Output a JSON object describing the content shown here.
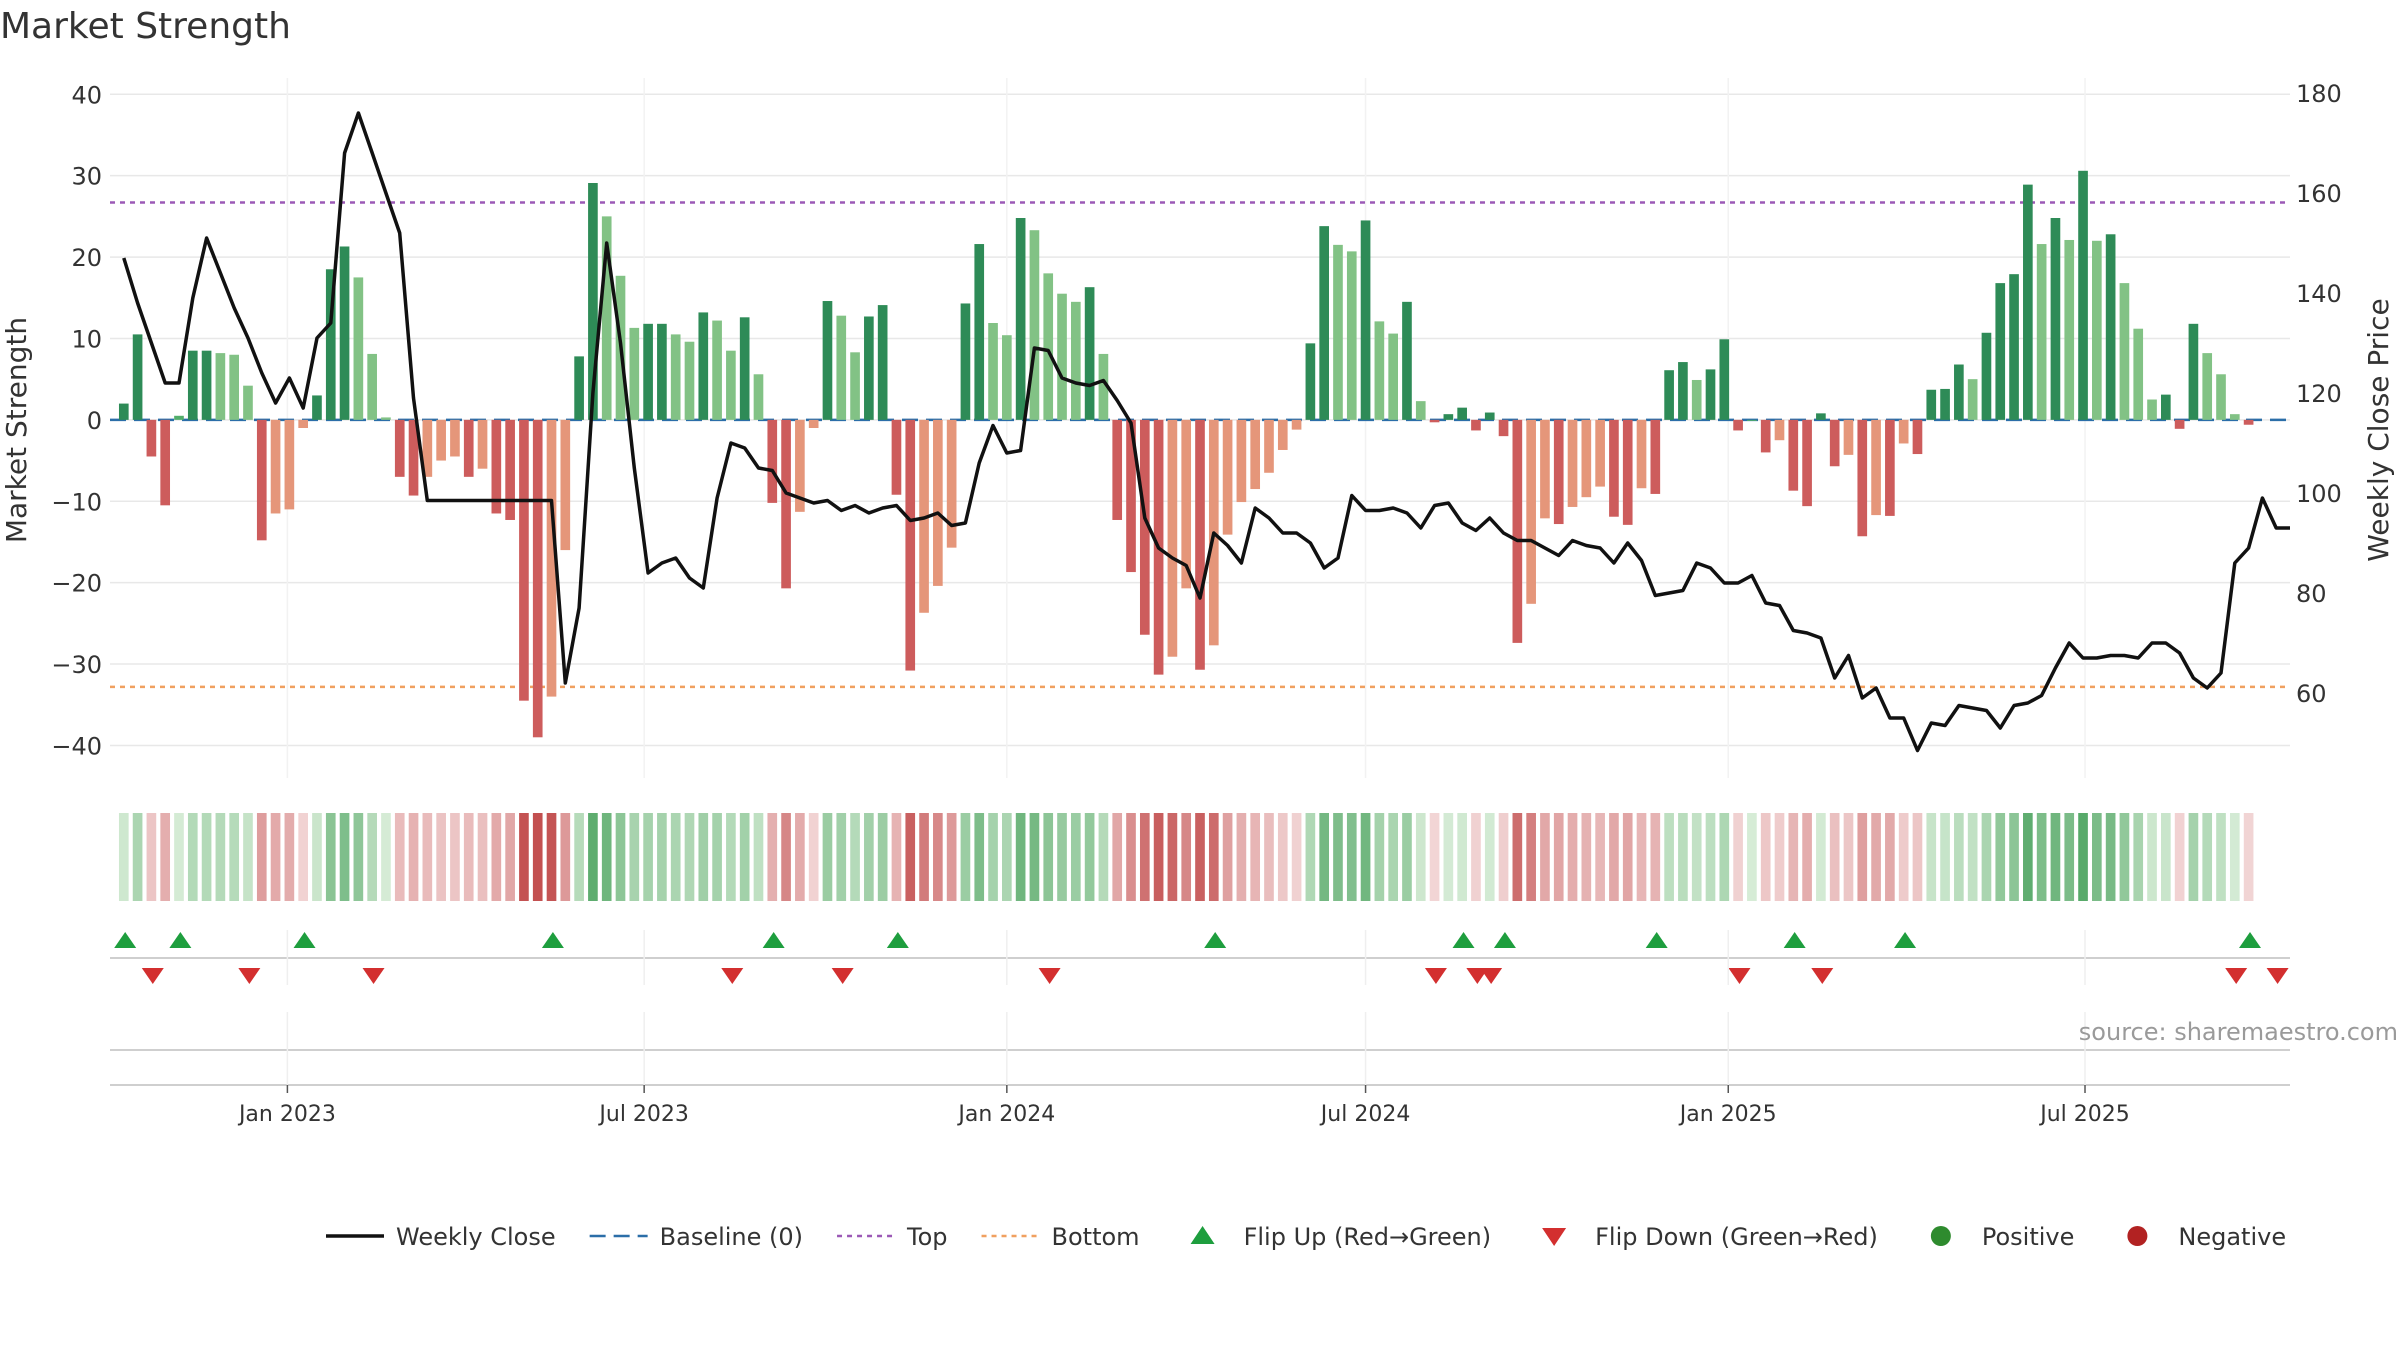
{
  "chart_data": {
    "type": "bar+line",
    "title": "Market Strength",
    "ylabel_left": "Market Strength",
    "ylabel_right": "Weekly Close Price",
    "ylim_left": [
      -44,
      42
    ],
    "ylim_right": [
      43,
      183
    ],
    "yticks_left": [
      40,
      30,
      20,
      10,
      0,
      -10,
      -20,
      -30,
      -40
    ],
    "ytick_labels_left": [
      "40",
      "30",
      "20",
      "10",
      "0",
      "−10",
      "−20",
      "−30",
      "−40"
    ],
    "yticks_right": [
      180,
      160,
      140,
      120,
      100,
      80,
      60
    ],
    "ytick_labels_right": [
      "180",
      "160",
      "140",
      "120",
      "100",
      "80",
      "60"
    ],
    "x_start": "2022-10-03",
    "x_end": "2025-10-13",
    "week_start": "2022-10-10",
    "x_ticks": [
      {
        "date": "2023-01-01",
        "label": "Jan 2023"
      },
      {
        "date": "2023-07-01",
        "label": "Jul 2023"
      },
      {
        "date": "2024-01-01",
        "label": "Jan 2024"
      },
      {
        "date": "2024-07-01",
        "label": "Jul 2024"
      },
      {
        "date": "2025-01-01",
        "label": "Jan 2025"
      },
      {
        "date": "2025-07-01",
        "label": "Jul 2025"
      }
    ],
    "top_level": 26.7,
    "bottom_level": -32.8,
    "baseline": 0,
    "strength": [
      2,
      10.5,
      -4.5,
      -10.5,
      0.5,
      8.5,
      8.5,
      8.2,
      8,
      4.2,
      -14.8,
      -11.5,
      -11,
      -1,
      3,
      18.5,
      21.3,
      17.5,
      8.1,
      0.3,
      -7,
      -9.3,
      -7,
      -5,
      -4.5,
      -7,
      -6,
      -11.5,
      -12.3,
      -34.5,
      -39,
      -34,
      -16,
      7.8,
      29.1,
      25,
      17.7,
      11.3,
      11.8,
      11.8,
      10.5,
      9.6,
      13.2,
      12.2,
      8.5,
      12.6,
      5.6,
      -10.2,
      -20.7,
      -11.3,
      -1,
      14.6,
      12.8,
      8.3,
      12.7,
      14.1,
      -9.2,
      -30.8,
      -23.7,
      -20.4,
      -15.7,
      14.3,
      21.6,
      11.9,
      10.4,
      24.8,
      23.3,
      18,
      15.5,
      14.5,
      16.3,
      8.1,
      -12.3,
      -18.7,
      -26.4,
      -31.3,
      -29.1,
      -20.7,
      -30.7,
      -27.7,
      -14.1,
      -10.1,
      -8.5,
      -6.5,
      -3.7,
      -1.2,
      9.4,
      23.8,
      21.5,
      20.7,
      24.5,
      12.1,
      10.6,
      14.5,
      2.3,
      -0.3,
      0.7,
      1.5,
      -1.3,
      0.9,
      -2,
      -27.4,
      -22.6,
      -12.1,
      -12.8,
      -10.7,
      -9.5,
      -8.2,
      -11.9,
      -12.9,
      -8.4,
      -9.1,
      6.1,
      7.1,
      4.9,
      6.2,
      9.9,
      -1.3,
      0,
      -4,
      -2.5,
      -8.7,
      -10.6,
      0.8,
      -5.7,
      -4.3,
      -14.3,
      -11.7,
      -11.8,
      -2.9,
      -4.2,
      3.7,
      3.8,
      6.8,
      5,
      10.7,
      16.8,
      17.9,
      28.9,
      21.6,
      24.8,
      22.1,
      30.6,
      22,
      22.8,
      16.8,
      11.2,
      2.5,
      3.1,
      -1.1,
      11.8,
      8.2,
      5.6,
      0.7,
      -0.6
    ],
    "weekly_close": [
      147,
      138,
      130,
      122,
      122,
      139,
      151,
      144,
      137,
      131,
      124,
      118,
      123,
      117,
      131,
      134,
      168,
      176,
      168,
      160,
      152,
      119,
      98.5,
      98.5,
      98.5,
      98.5,
      98.5,
      98.5,
      98.5,
      98.5,
      98.5,
      98.5,
      62,
      77,
      120,
      150,
      130,
      105,
      84,
      86,
      87,
      83,
      81,
      99,
      110,
      109,
      105,
      104.5,
      100,
      99,
      98,
      98.5,
      96.5,
      97.5,
      96,
      97,
      97.5,
      94.5,
      95,
      96,
      93.5,
      94,
      106,
      113.5,
      108,
      108.5,
      129,
      128.5,
      123,
      122,
      121.5,
      122.5,
      118.5,
      114,
      95,
      89,
      87,
      85.5,
      79,
      92,
      89.5,
      86,
      97,
      95,
      92,
      92,
      90,
      85,
      87,
      99.5,
      96.5,
      96.5,
      97,
      96,
      93,
      97.5,
      98,
      94,
      92.5,
      95,
      92,
      90.5,
      90.5,
      89,
      87.5,
      90.5,
      89.5,
      89,
      86,
      90,
      86.5,
      79.5,
      80,
      80.5,
      86,
      85,
      82,
      82,
      83.5,
      78,
      77.5,
      72.5,
      72,
      71,
      63,
      67.5,
      59,
      61,
      55,
      55,
      48.5,
      54,
      53.5,
      57.5,
      57,
      56.5,
      53,
      57.5,
      58,
      59.5,
      65,
      70,
      67,
      67,
      67.5,
      67.5,
      67,
      70,
      70,
      68,
      63,
      61,
      64,
      86,
      89,
      99,
      93,
      93
    ],
    "flip_up_dates": [
      "2022-10-10",
      "2022-11-07",
      "2023-01-09",
      "2023-05-15",
      "2023-09-04",
      "2023-11-06",
      "2024-04-15",
      "2024-08-19",
      "2024-09-09",
      "2024-11-25",
      "2025-02-03",
      "2025-03-31",
      "2025-09-22"
    ],
    "flip_down_dates": [
      "2022-10-24",
      "2022-12-12",
      "2023-02-13",
      "2023-08-14",
      "2023-10-09",
      "2024-01-22",
      "2024-08-05",
      "2024-08-26",
      "2024-09-02",
      "2025-01-06",
      "2025-02-17",
      "2025-09-15",
      "2025-10-06"
    ],
    "source": "source: sharemaestro.com",
    "legend": [
      {
        "label": "Weekly Close",
        "kind": "line",
        "color": "#111111"
      },
      {
        "label": "Baseline (0)",
        "kind": "dash",
        "color": "#2b6ea8"
      },
      {
        "label": "Top",
        "kind": "dot",
        "color": "#9b59b6"
      },
      {
        "label": "Bottom",
        "kind": "dot",
        "color": "#f0a060"
      },
      {
        "label": "Flip Up (Red→Green)",
        "kind": "up",
        "color": "#1e9e3e"
      },
      {
        "label": "Flip Down (Green→Red)",
        "kind": "down",
        "color": "#d32f2f"
      },
      {
        "label": "Positive",
        "kind": "circle",
        "color": "#2e8b2e"
      },
      {
        "label": "Negative",
        "kind": "circle",
        "color": "#b22222"
      }
    ],
    "colors": {
      "pos_strong": "#2e8b57",
      "pos_mid": "#52ad6a",
      "pos_light": "#82c285",
      "neg_strong": "#cd5c5c",
      "neg_light": "#e5967a",
      "top": "#9b59b6",
      "bottom": "#f0a060",
      "baseline": "#2b6ea8",
      "line": "#111111",
      "grid": "#e8e8e8"
    }
  }
}
